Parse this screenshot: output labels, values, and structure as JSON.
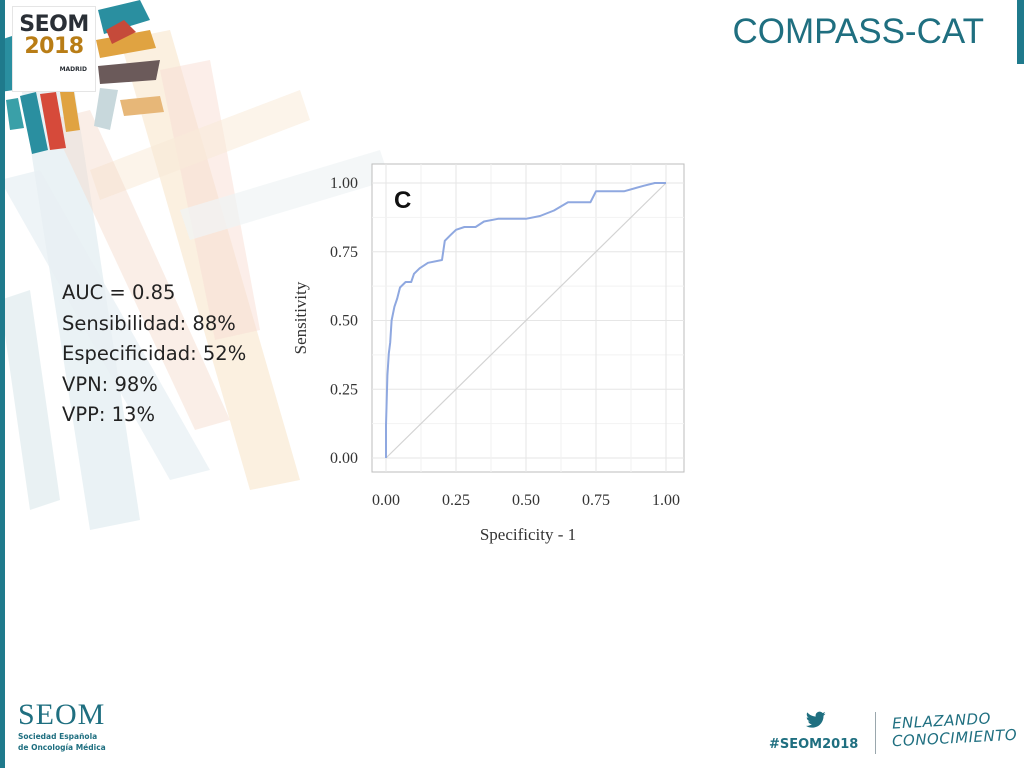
{
  "slide": {
    "title": "COMPASS-CAT"
  },
  "branding": {
    "logo_name": "SEOM",
    "logo_year": "2018",
    "logo_city": "MADRID",
    "footer_name": "SEOM",
    "footer_sub_line1": "Sociedad Española",
    "footer_sub_line2": "de Oncología Médica",
    "hashtag": "#SEOM2018",
    "tagline_line1": "ENLAZANDO",
    "tagline_line2": "CONOCIMIENTO",
    "accent_color": "#1f6f80"
  },
  "stats": [
    "AUC = 0.85",
    "Sensibilidad: 88%",
    "Especificidad: 52%",
    "VPN: 98%",
    "VPP: 13%"
  ],
  "chart_data": {
    "type": "line",
    "panel_label": "C",
    "xlabel": "Specificity - 1",
    "ylabel": "Sensitivity",
    "xlim": [
      0,
      1
    ],
    "ylim": [
      0,
      1
    ],
    "x_ticks": [
      "0.00",
      "0.25",
      "0.50",
      "0.75",
      "1.00"
    ],
    "y_ticks": [
      "0.00",
      "0.25",
      "0.50",
      "0.75",
      "1.00"
    ],
    "grid": true,
    "legend": "none",
    "series": [
      {
        "color": "#8fa8e0",
        "points": [
          [
            0.0,
            0.0
          ],
          [
            0.0,
            0.12
          ],
          [
            0.005,
            0.3
          ],
          [
            0.01,
            0.38
          ],
          [
            0.015,
            0.42
          ],
          [
            0.02,
            0.5
          ],
          [
            0.03,
            0.55
          ],
          [
            0.04,
            0.58
          ],
          [
            0.05,
            0.62
          ],
          [
            0.07,
            0.64
          ],
          [
            0.09,
            0.64
          ],
          [
            0.1,
            0.67
          ],
          [
            0.12,
            0.69
          ],
          [
            0.15,
            0.71
          ],
          [
            0.2,
            0.72
          ],
          [
            0.21,
            0.79
          ],
          [
            0.23,
            0.81
          ],
          [
            0.25,
            0.83
          ],
          [
            0.28,
            0.84
          ],
          [
            0.32,
            0.84
          ],
          [
            0.35,
            0.86
          ],
          [
            0.4,
            0.87
          ],
          [
            0.5,
            0.87
          ],
          [
            0.55,
            0.88
          ],
          [
            0.6,
            0.9
          ],
          [
            0.65,
            0.93
          ],
          [
            0.73,
            0.93
          ],
          [
            0.75,
            0.97
          ],
          [
            0.85,
            0.97
          ],
          [
            0.92,
            0.99
          ],
          [
            0.96,
            1.0
          ],
          [
            1.0,
            1.0
          ]
        ]
      },
      {
        "color": "#d3d3d3",
        "points": [
          [
            0,
            0
          ],
          [
            1,
            1
          ]
        ]
      }
    ]
  }
}
